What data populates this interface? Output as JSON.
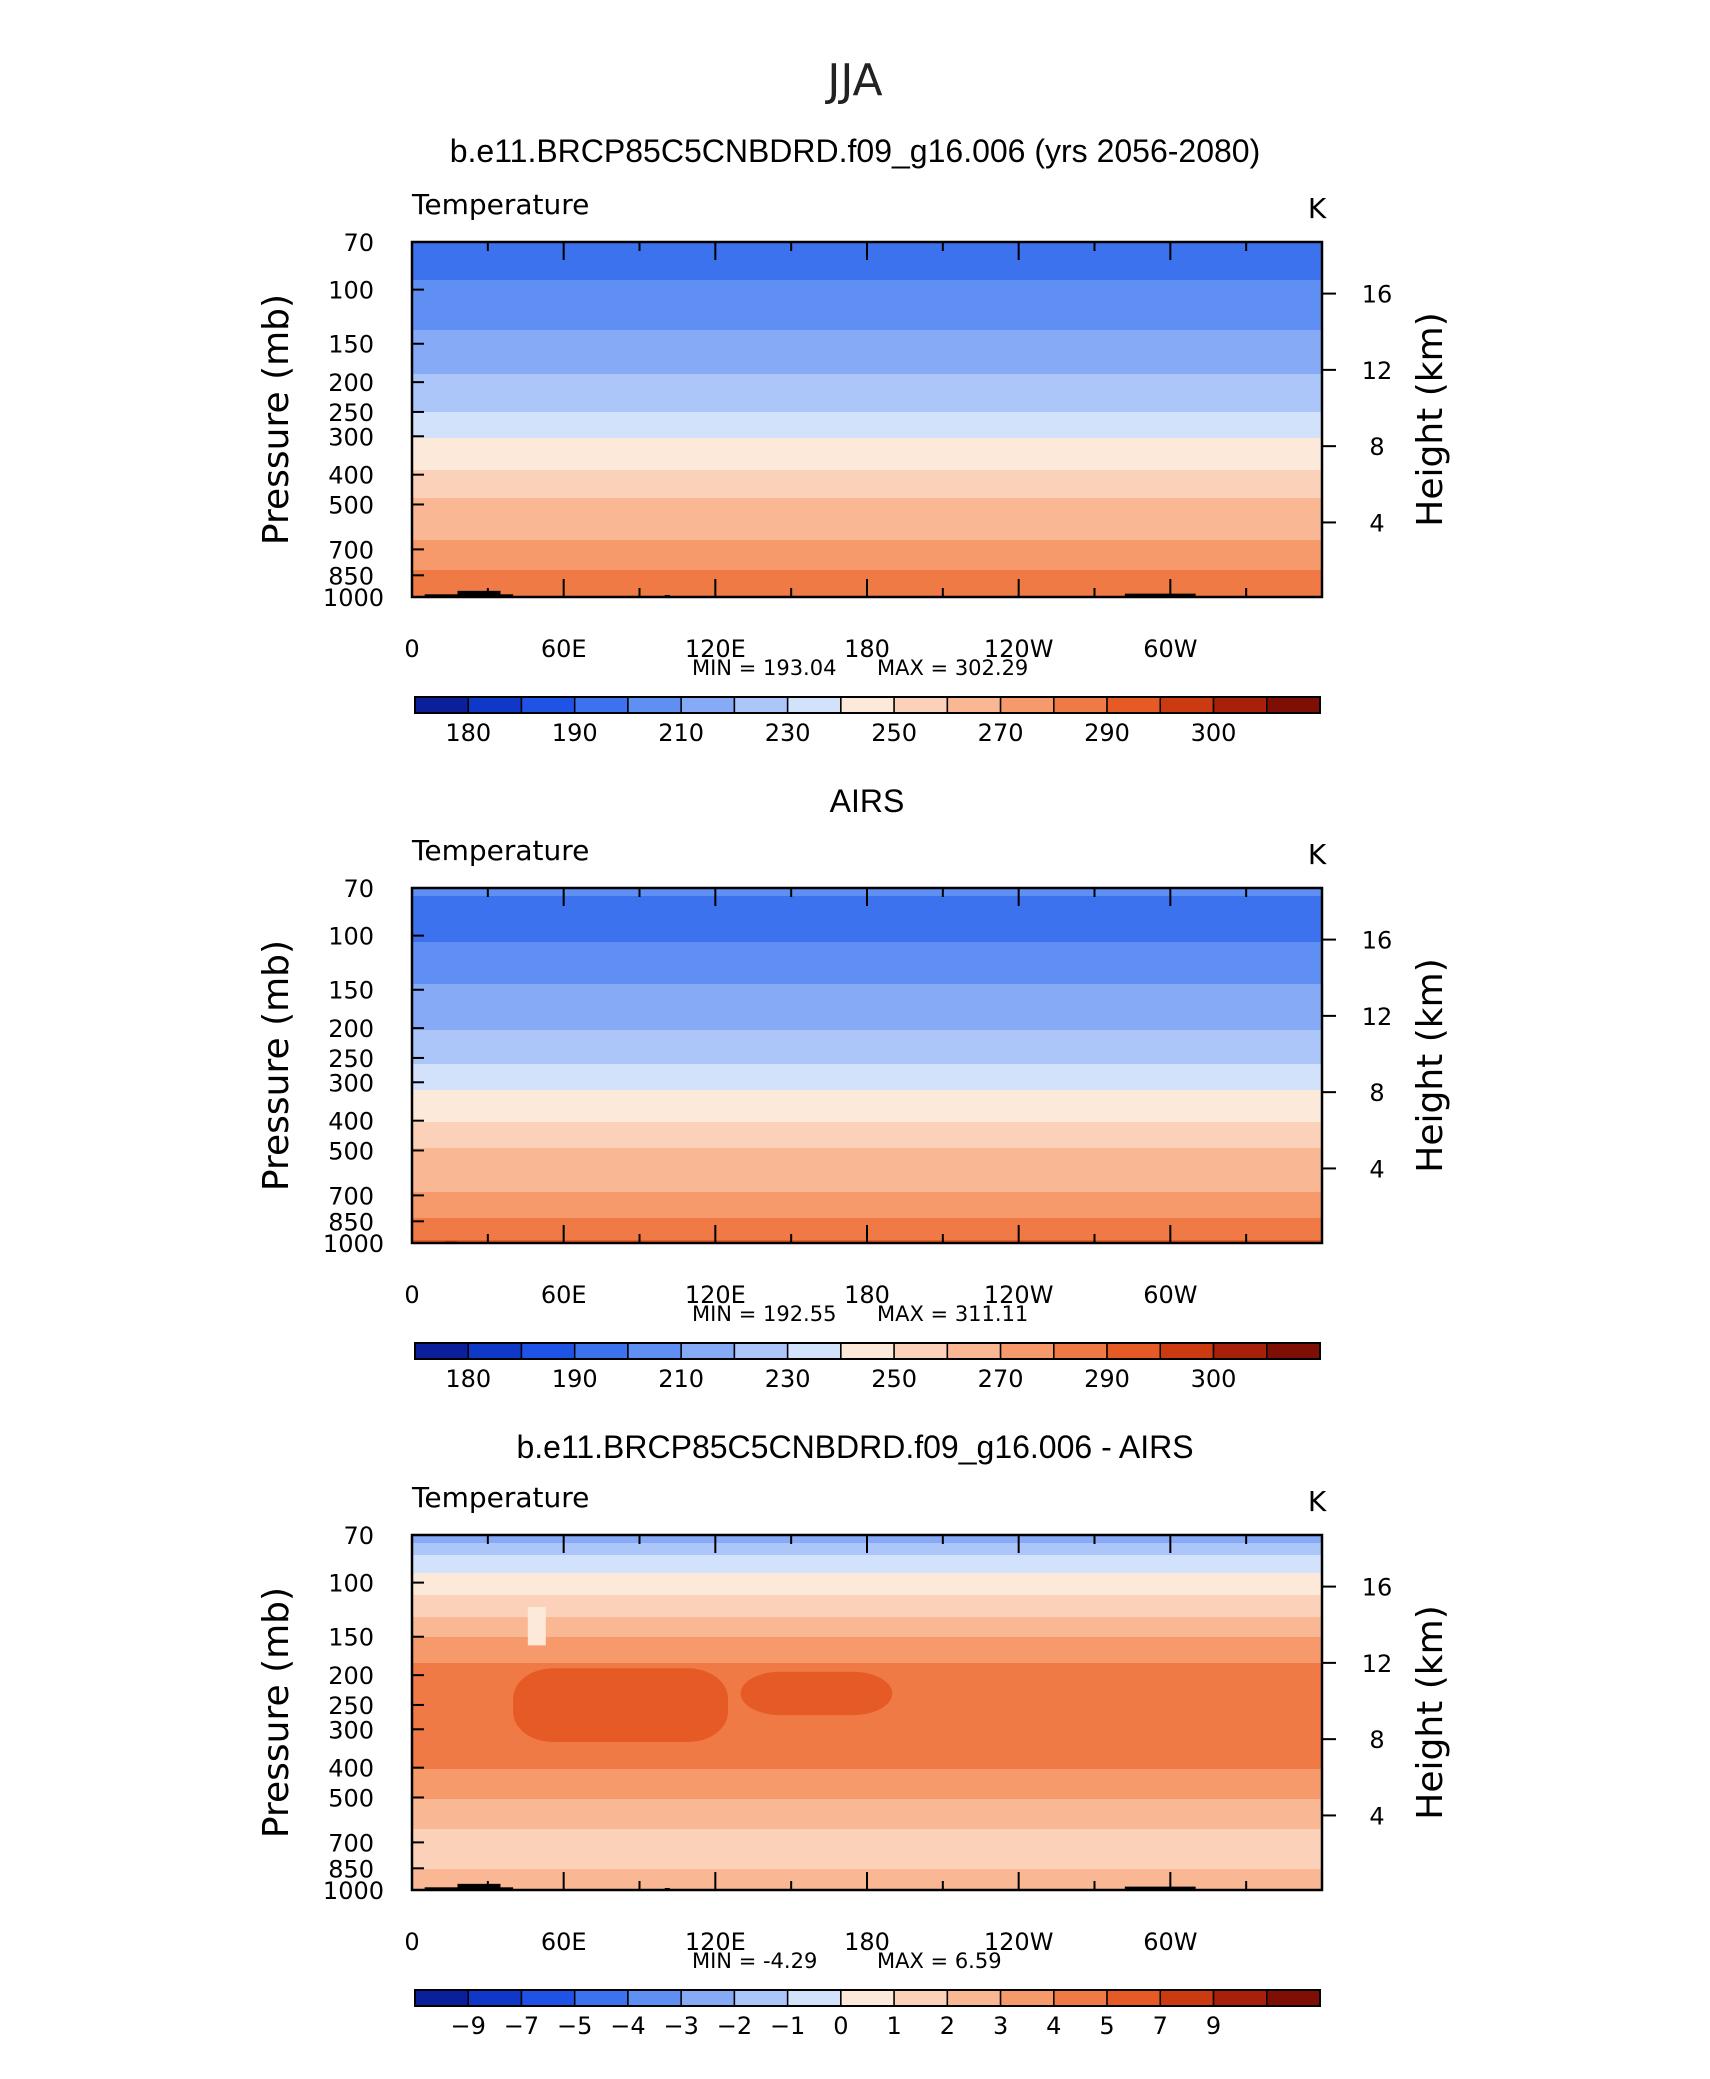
{
  "figure": {
    "season": "JJA"
  },
  "palette": {
    "abs": [
      "#0a1f9a",
      "#0f37c8",
      "#1f53e6",
      "#3d72ee",
      "#5f8ff3",
      "#86aaf6",
      "#acc6f9",
      "#d2e2fb",
      "#fce9da",
      "#fbd2b9",
      "#f9b794",
      "#f6996b",
      "#f07a46",
      "#e65a26",
      "#cc3a12",
      "#a8200a",
      "#7f0e04"
    ],
    "diff": [
      "#0a1f9a",
      "#0f37c8",
      "#1f53e6",
      "#3d72ee",
      "#5f8ff3",
      "#86aaf6",
      "#acc6f9",
      "#d2e2fb",
      "#fce9da",
      "#fbd2b9",
      "#f9b794",
      "#f6996b",
      "#f07a46",
      "#e65a26",
      "#cc3a12",
      "#a8200a",
      "#7f0e04"
    ],
    "land": "#000000"
  },
  "panels": [
    {
      "title": "b.e11.BRCP85C5CNBDRD.f09_g16.006 (yrs 2056-2080)",
      "variable": "Temperature",
      "units": "K",
      "min_label": "MIN  =  193.04",
      "max_label": "MAX  =  302.29",
      "colorbar_labels": [
        "180",
        "190",
        "210",
        "230",
        "250",
        "270",
        "290",
        "300"
      ]
    },
    {
      "title": "AIRS",
      "variable": "Temperature",
      "units": "K",
      "min_label": "MIN  =  192.55",
      "max_label": "MAX  =  311.11",
      "colorbar_labels": [
        "180",
        "190",
        "210",
        "230",
        "250",
        "270",
        "290",
        "300"
      ]
    },
    {
      "title": "b.e11.BRCP85C5CNBDRD.f09_g16.006 - AIRS",
      "variable": "Temperature",
      "units": "K",
      "min_label": "MIN  =     -4.29",
      "max_label": "MAX  =      6.59",
      "colorbar_labels": [
        "-9",
        "-7",
        "-5",
        "-4",
        "-3",
        "-2",
        "-1",
        "0",
        "1",
        "2",
        "3",
        "4",
        "5",
        "7",
        "9"
      ]
    }
  ],
  "chart_data": [
    {
      "type": "heatmap",
      "title": "b.e11.BRCP85C5CNBDRD.f09_g16.006 (yrs 2056-2080)",
      "subtitle": "Temperature",
      "units": "K",
      "ylabel": "Pressure (mb)",
      "y2label": "Height (km)",
      "x_ticks": [
        "0",
        "60E",
        "120E",
        "180",
        "120W",
        "60W"
      ],
      "x_range_deg": [
        0,
        360
      ],
      "y_ticks": [
        "70",
        "100",
        "150",
        "200",
        "250",
        "300",
        "400",
        "500",
        "700",
        "850",
        "1000"
      ],
      "y_range_mb": [
        70,
        1000
      ],
      "y_scale": "log",
      "y2_ticks": [
        "4",
        "8",
        "12",
        "16"
      ],
      "min": 193.04,
      "max": 302.29,
      "contour_levels": [
        180,
        185,
        190,
        200,
        210,
        220,
        230,
        240,
        250,
        260,
        270,
        280,
        290,
        295,
        300,
        305
      ],
      "colorbar_labels": [
        "180",
        "190",
        "210",
        "230",
        "250",
        "270",
        "290",
        "300"
      ],
      "profile_levels_mb": [
        70,
        85,
        100,
        120,
        150,
        200,
        250,
        300,
        400,
        500,
        700,
        850,
        1000
      ],
      "profile_K": [
        199,
        199,
        201,
        206,
        214,
        222,
        230,
        240,
        252,
        263,
        272,
        283,
        290
      ]
    },
    {
      "type": "heatmap",
      "title": "AIRS",
      "subtitle": "Temperature",
      "units": "K",
      "ylabel": "Pressure (mb)",
      "y2label": "Height (km)",
      "x_ticks": [
        "0",
        "60E",
        "120E",
        "180",
        "120W",
        "60W"
      ],
      "x_range_deg": [
        0,
        360
      ],
      "y_ticks": [
        "70",
        "100",
        "150",
        "200",
        "250",
        "300",
        "400",
        "500",
        "700",
        "850",
        "1000"
      ],
      "y_range_mb": [
        70,
        1000
      ],
      "y_scale": "log",
      "y2_ticks": [
        "4",
        "8",
        "12",
        "16"
      ],
      "min": 192.55,
      "max": 311.11,
      "contour_levels": [
        180,
        185,
        190,
        200,
        210,
        220,
        230,
        240,
        250,
        260,
        270,
        280,
        290,
        295,
        300,
        305
      ],
      "colorbar_labels": [
        "180",
        "190",
        "210",
        "230",
        "250",
        "270",
        "290",
        "300"
      ],
      "profile_levels_mb": [
        70,
        85,
        100,
        120,
        150,
        200,
        250,
        300,
        400,
        500,
        700,
        850,
        1000
      ],
      "profile_K": [
        201,
        197,
        199,
        204,
        212,
        220,
        228,
        238,
        250,
        261,
        271,
        282,
        292
      ]
    },
    {
      "type": "heatmap",
      "title": "b.e11.BRCP85C5CNBDRD.f09_g16.006 - AIRS",
      "subtitle": "Temperature",
      "units": "K",
      "ylabel": "Pressure (mb)",
      "y2label": "Height (km)",
      "x_ticks": [
        "0",
        "60E",
        "120E",
        "180",
        "120W",
        "60W"
      ],
      "x_range_deg": [
        0,
        360
      ],
      "y_ticks": [
        "70",
        "100",
        "150",
        "200",
        "250",
        "300",
        "400",
        "500",
        "700",
        "850",
        "1000"
      ],
      "y_range_mb": [
        70,
        1000
      ],
      "y_scale": "log",
      "y2_ticks": [
        "4",
        "8",
        "12",
        "16"
      ],
      "min": -4.29,
      "max": 6.59,
      "contour_levels": [
        -9,
        -7,
        -5,
        -4,
        -3,
        -2,
        -1,
        0,
        1,
        2,
        3,
        4,
        5,
        7,
        9
      ],
      "colorbar_labels": [
        "-9",
        "-7",
        "-5",
        "-4",
        "-3",
        "-2",
        "-1",
        "0",
        "1",
        "2",
        "3",
        "4",
        "5",
        "7",
        "9"
      ],
      "profile_levels_mb": [
        70,
        85,
        100,
        120,
        150,
        200,
        250,
        300,
        400,
        500,
        700,
        850,
        1000
      ],
      "profile_diff_K": [
        -2.5,
        -0.5,
        0.5,
        1.5,
        3.0,
        4.5,
        5.0,
        4.5,
        4.0,
        3.0,
        1.5,
        2.0,
        2.5
      ],
      "warm_cores": [
        {
          "lon_range": [
            40,
            125
          ],
          "p_range_mb": [
            190,
            330
          ],
          "value": 5.5
        },
        {
          "lon_range": [
            130,
            190
          ],
          "p_range_mb": [
            195,
            270
          ],
          "value": 5.5
        }
      ]
    }
  ]
}
